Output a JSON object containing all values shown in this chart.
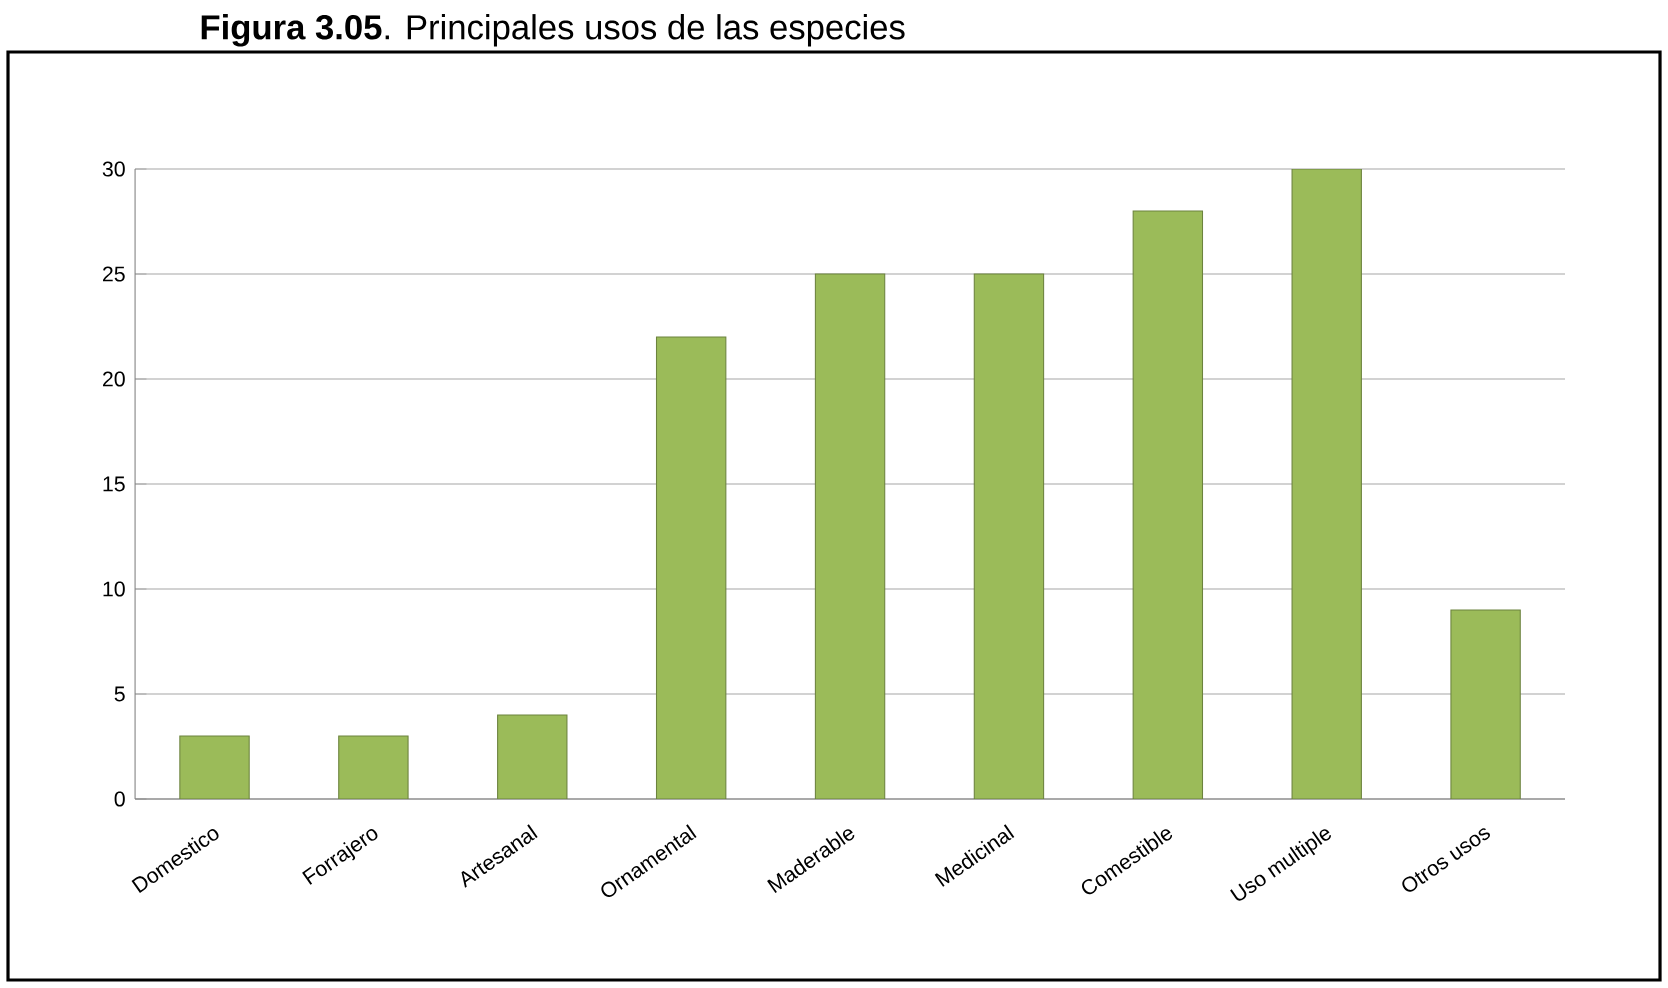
{
  "chart_data": {
    "type": "bar",
    "title": "**Figura 3.05**. Principales usos de las especies",
    "categories": [
      "Domestico",
      "Forrajero",
      "Artesanal",
      "Ornamental",
      "Maderable",
      "Medicinal",
      "Comestible",
      "Uso multiple",
      "Otros usos"
    ],
    "values": [
      3,
      3,
      4,
      22,
      25,
      25,
      28,
      30,
      9
    ],
    "color": "#9bbb59",
    "ylim": [
      0,
      30
    ],
    "yticks": [
      0,
      5,
      10,
      15,
      20,
      25,
      30
    ],
    "grid": "y"
  }
}
